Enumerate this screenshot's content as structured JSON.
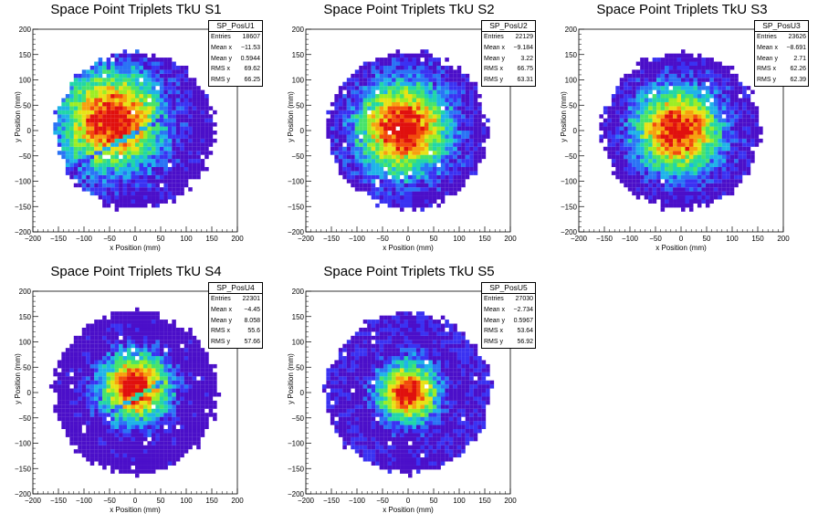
{
  "colors": {
    "palette": [
      "#4b0fc9",
      "#3a32f2",
      "#2a73f5",
      "#1fb3e8",
      "#22d6a7",
      "#47e36a",
      "#9ded25",
      "#e8e216",
      "#f7a00f",
      "#f24b0c",
      "#e0100e"
    ],
    "axis": "#000000",
    "background": "#ffffff"
  },
  "chart_data": [
    {
      "type": "heatmap",
      "title": "Space Point Triplets TkU S1",
      "histogram_name": "SP_PosU1",
      "xlabel": "x Position (mm)",
      "ylabel": "y Position (mm)",
      "xlim": [
        -200,
        200
      ],
      "ylim": [
        -200,
        200
      ],
      "xticks": [
        "−200",
        "−150",
        "−100",
        "−50",
        "0",
        "50",
        "100",
        "150",
        "200"
      ],
      "yticks": [
        "−200",
        "−150",
        "−100",
        "−50",
        "0",
        "50",
        "100",
        "150",
        "200"
      ],
      "stats": [
        {
          "label": "Entries",
          "value": "18607"
        },
        {
          "label": "Mean x",
          "value": "−11.53"
        },
        {
          "label": "Mean y",
          "value": "0.5944"
        },
        {
          "label": "RMS x",
          "value": "69.62"
        },
        {
          "label": "RMS y",
          "value": "66.25"
        }
      ],
      "distribution": {
        "radius": 155,
        "peak_x": -45,
        "peak_y": 20,
        "spread": 70,
        "gap_line": true
      }
    },
    {
      "type": "heatmap",
      "title": "Space Point Triplets TkU S2",
      "histogram_name": "SP_PosU2",
      "xlabel": "x Position (mm)",
      "ylabel": "y Position (mm)",
      "xlim": [
        -200,
        200
      ],
      "ylim": [
        -200,
        200
      ],
      "xticks": [
        "−200",
        "−150",
        "−100",
        "−50",
        "0",
        "50",
        "100",
        "150",
        "200"
      ],
      "yticks": [
        "−200",
        "−150",
        "−100",
        "−50",
        "0",
        "50",
        "100",
        "150",
        "200"
      ],
      "stats": [
        {
          "label": "Entries",
          "value": "22129"
        },
        {
          "label": "Mean x",
          "value": "−9.184"
        },
        {
          "label": "Mean y",
          "value": "3.22"
        },
        {
          "label": "RMS x",
          "value": "66.75"
        },
        {
          "label": "RMS y",
          "value": "63.31"
        }
      ],
      "distribution": {
        "radius": 155,
        "peak_x": -10,
        "peak_y": 5,
        "spread": 65,
        "gap_line": false
      }
    },
    {
      "type": "heatmap",
      "title": "Space Point Triplets TkU S3",
      "histogram_name": "SP_PosU3",
      "xlabel": "x Position (mm)",
      "ylabel": "y Position (mm)",
      "xlim": [
        -200,
        200
      ],
      "ylim": [
        -200,
        200
      ],
      "xticks": [
        "−200",
        "−150",
        "−100",
        "−50",
        "0",
        "50",
        "100",
        "150",
        "200"
      ],
      "yticks": [
        "−200",
        "−150",
        "−100",
        "−50",
        "0",
        "50",
        "100",
        "150",
        "200"
      ],
      "stats": [
        {
          "label": "Entries",
          "value": "23626"
        },
        {
          "label": "Mean x",
          "value": "−8.691"
        },
        {
          "label": "Mean y",
          "value": "2.71"
        },
        {
          "label": "RMS x",
          "value": "62.26"
        },
        {
          "label": "RMS y",
          "value": "62.39"
        }
      ],
      "distribution": {
        "radius": 155,
        "peak_x": -5,
        "peak_y": 0,
        "spread": 60,
        "gap_line": false
      }
    },
    {
      "type": "heatmap",
      "title": "Space Point Triplets TkU S4",
      "histogram_name": "SP_PosU4",
      "xlabel": "x Position (mm)",
      "ylabel": "y Position (mm)",
      "xlim": [
        -200,
        200
      ],
      "ylim": [
        -200,
        200
      ],
      "xticks": [
        "−200",
        "−150",
        "−100",
        "−50",
        "0",
        "50",
        "100",
        "150",
        "200"
      ],
      "yticks": [
        "−200",
        "−150",
        "−100",
        "−50",
        "0",
        "50",
        "100",
        "150",
        "200"
      ],
      "stats": [
        {
          "label": "Entries",
          "value": "22301"
        },
        {
          "label": "Mean x",
          "value": "−4.45"
        },
        {
          "label": "Mean y",
          "value": "8.058"
        },
        {
          "label": "RMS x",
          "value": "55.6"
        },
        {
          "label": "RMS y",
          "value": "57.66"
        }
      ],
      "distribution": {
        "radius": 160,
        "peak_x": 0,
        "peak_y": 10,
        "spread": 48,
        "gap_line": true
      }
    },
    {
      "type": "heatmap",
      "title": "Space Point Triplets TkU S5",
      "histogram_name": "SP_PosU5",
      "xlabel": "x Position (mm)",
      "ylabel": "y Position (mm)",
      "xlim": [
        -200,
        200
      ],
      "ylim": [
        -200,
        200
      ],
      "xticks": [
        "−200",
        "−150",
        "−100",
        "−50",
        "0",
        "50",
        "100",
        "150",
        "200"
      ],
      "yticks": [
        "−200",
        "−150",
        "−100",
        "−50",
        "0",
        "50",
        "100",
        "150",
        "200"
      ],
      "stats": [
        {
          "label": "Entries",
          "value": "27030"
        },
        {
          "label": "Mean x",
          "value": "−2.734"
        },
        {
          "label": "Mean y",
          "value": "0.5967"
        },
        {
          "label": "RMS x",
          "value": "53.64"
        },
        {
          "label": "RMS y",
          "value": "56.92"
        }
      ],
      "distribution": {
        "radius": 160,
        "peak_x": 0,
        "peak_y": 0,
        "spread": 42,
        "gap_line": false
      }
    }
  ]
}
